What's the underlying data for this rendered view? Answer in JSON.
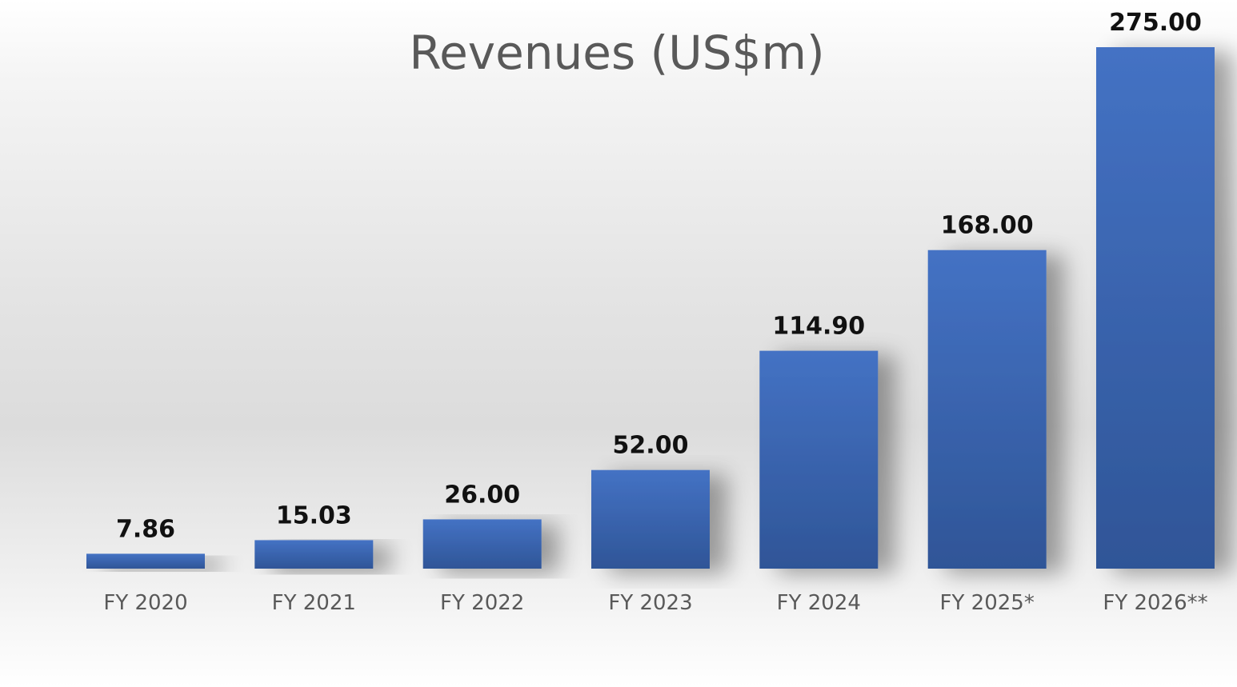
{
  "chart_data": {
    "type": "bar",
    "title": "Revenues (US$m)",
    "xlabel": "",
    "ylabel": "",
    "categories": [
      "FY 2020",
      "FY 2021",
      "FY 2022",
      "FY 2023",
      "FY 2024",
      "FY 2025*",
      "FY 2026**"
    ],
    "values": [
      7.86,
      15.03,
      26.0,
      52.0,
      114.9,
      168.0,
      275.0
    ],
    "value_labels": [
      "7.86",
      "15.03",
      "26.00",
      "52.00",
      "114.90",
      "168.00",
      "275.00"
    ],
    "ylim": [
      0,
      275
    ],
    "grid": false,
    "legend": "none",
    "colors": {
      "bar_top": "#4472C4",
      "bar_bottom": "#2F5597"
    }
  }
}
